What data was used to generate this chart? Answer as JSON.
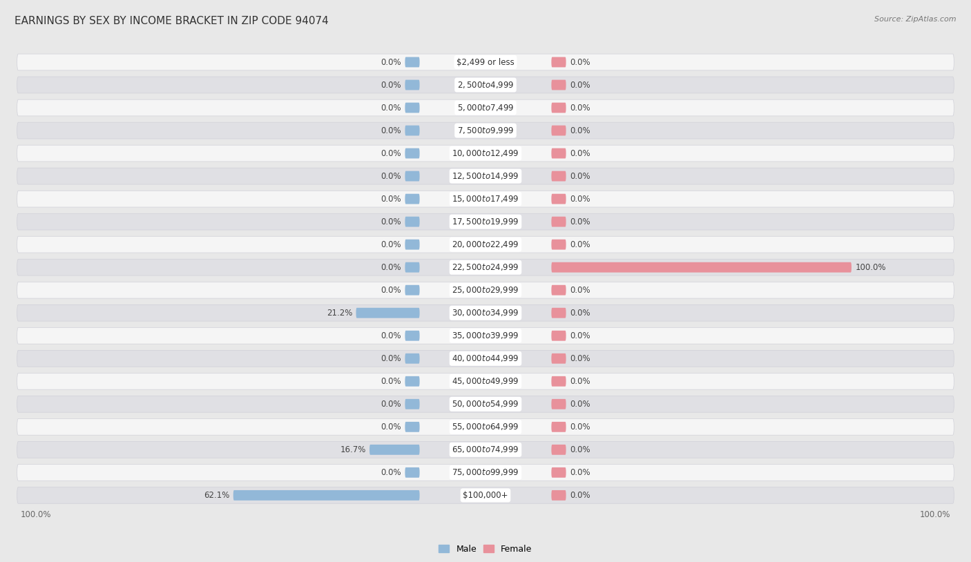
{
  "title": "EARNINGS BY SEX BY INCOME BRACKET IN ZIP CODE 94074",
  "source": "Source: ZipAtlas.com",
  "categories": [
    "$2,499 or less",
    "$2,500 to $4,999",
    "$5,000 to $7,499",
    "$7,500 to $9,999",
    "$10,000 to $12,499",
    "$12,500 to $14,999",
    "$15,000 to $17,499",
    "$17,500 to $19,999",
    "$20,000 to $22,499",
    "$22,500 to $24,999",
    "$25,000 to $29,999",
    "$30,000 to $34,999",
    "$35,000 to $39,999",
    "$40,000 to $44,999",
    "$45,000 to $49,999",
    "$50,000 to $54,999",
    "$55,000 to $64,999",
    "$65,000 to $74,999",
    "$75,000 to $99,999",
    "$100,000+"
  ],
  "male_values": [
    0.0,
    0.0,
    0.0,
    0.0,
    0.0,
    0.0,
    0.0,
    0.0,
    0.0,
    0.0,
    0.0,
    21.2,
    0.0,
    0.0,
    0.0,
    0.0,
    0.0,
    16.7,
    0.0,
    62.1
  ],
  "female_values": [
    0.0,
    0.0,
    0.0,
    0.0,
    0.0,
    0.0,
    0.0,
    0.0,
    0.0,
    100.0,
    0.0,
    0.0,
    0.0,
    0.0,
    0.0,
    0.0,
    0.0,
    0.0,
    0.0,
    0.0
  ],
  "male_color": "#92b8d8",
  "female_color": "#e8919b",
  "bg_color": "#e8e8e8",
  "row_bg_light": "#f5f5f5",
  "row_bg_dark": "#e0e0e4",
  "row_border": "#d0d0d8",
  "max_val": 100.0,
  "title_fontsize": 11,
  "source_fontsize": 8,
  "value_fontsize": 8.5,
  "category_fontsize": 8.5,
  "legend_fontsize": 9,
  "min_bar_width": 4.0,
  "axis_limit": 100.0
}
